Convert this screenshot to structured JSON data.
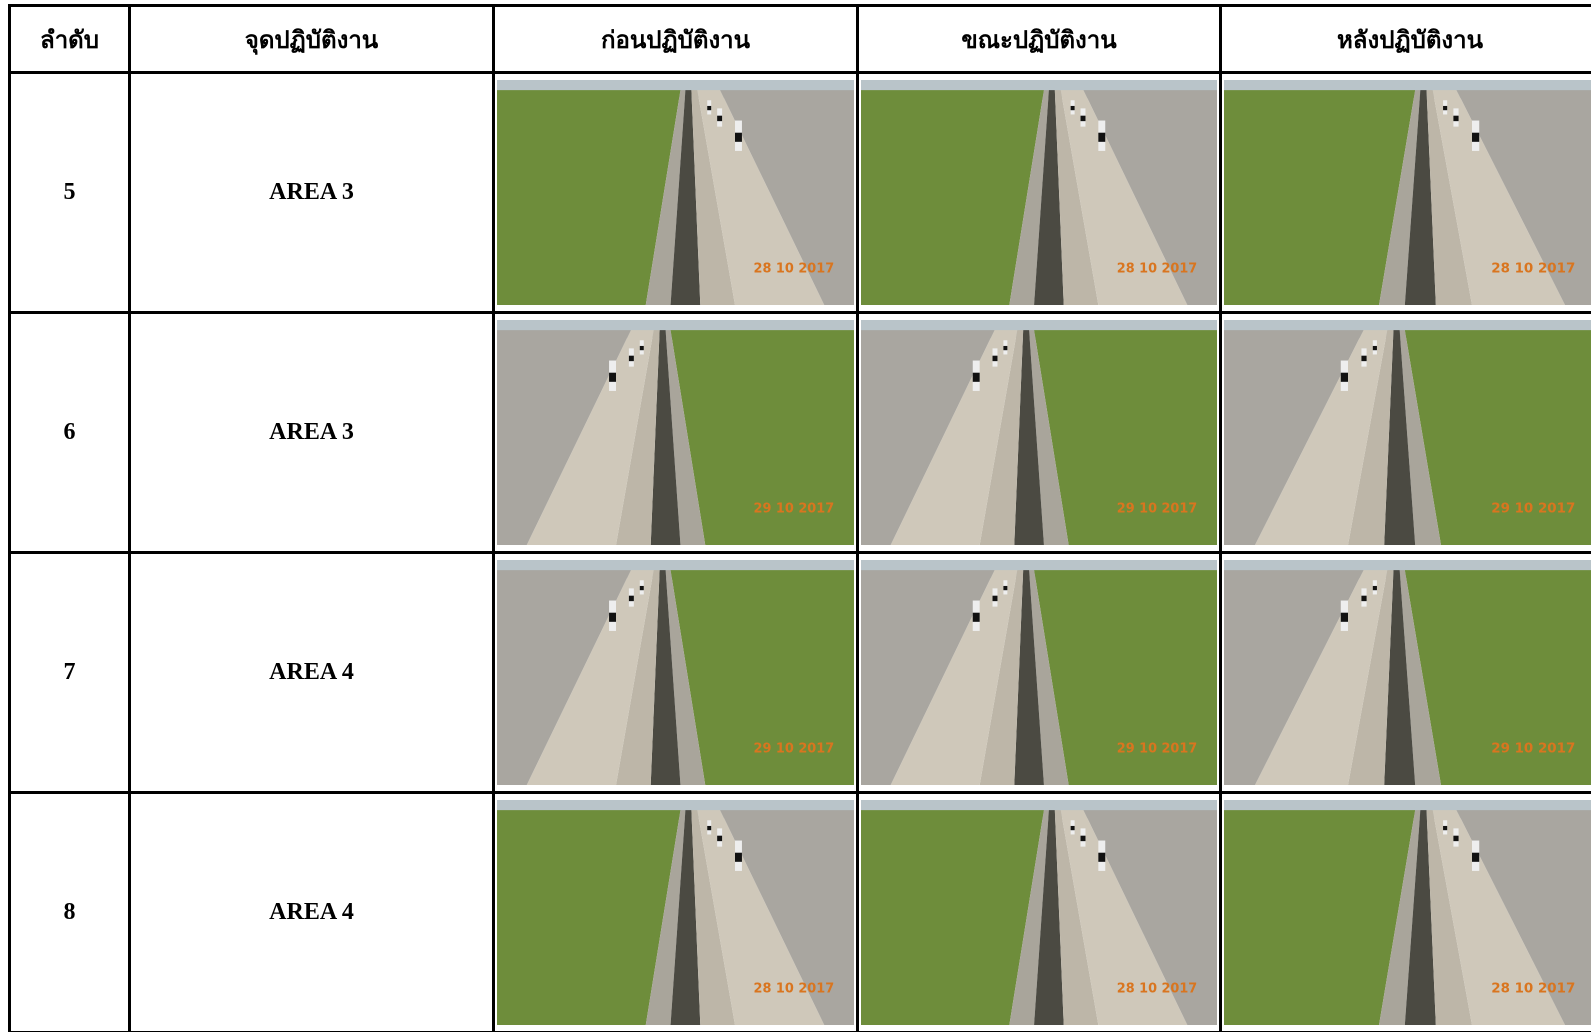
{
  "header": {
    "columns": [
      "ลำดับ",
      "จุดปฏิบัติงาน",
      "ก่อนปฏิบัติงาน",
      "ขณะปฏิบัติงาน",
      "หลังปฏิบัติงาน"
    ]
  },
  "rows": [
    {
      "no": "5",
      "area": "AREA 3",
      "photos": [
        "28 10 2017",
        "28 10 2017",
        "28 10 2017"
      ]
    },
    {
      "no": "6",
      "area": "AREA 3",
      "photos": [
        "29 10 2017",
        "29 10 2017",
        "29 10 2017"
      ]
    },
    {
      "no": "7",
      "area": "AREA 4",
      "photos": [
        "29 10 2017",
        "29 10 2017",
        "29 10 2017"
      ]
    },
    {
      "no": "8",
      "area": "AREA 4",
      "photos": [
        "28 10 2017",
        "28 10 2017",
        "28 10 2017"
      ]
    }
  ]
}
